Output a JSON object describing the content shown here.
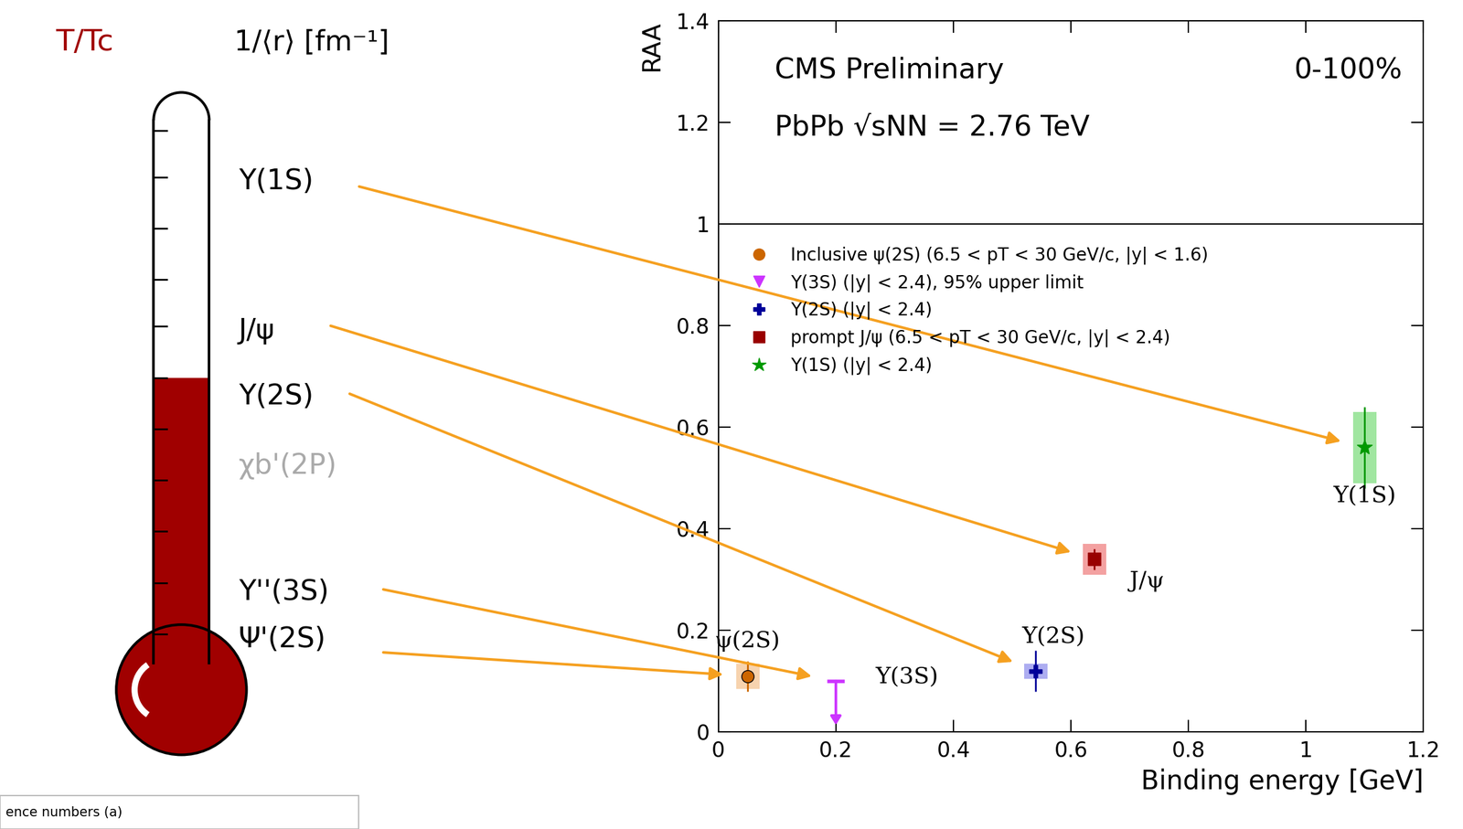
{
  "chart_data": {
    "type": "scatter",
    "x_label": "Binding energy [GeV]",
    "y_label": "RAA",
    "annotations": [
      "CMS Preliminary",
      "0-100%",
      "PbPb √sNN = 2.76 TeV"
    ],
    "xlim": [
      0,
      1.2
    ],
    "xticks": [
      0,
      0.2,
      0.4,
      0.6,
      0.8,
      1,
      1.2
    ],
    "ylim": [
      0,
      1.4
    ],
    "yticks": [
      0,
      0.2,
      0.4,
      0.6,
      0.8,
      1,
      1.2,
      1.4
    ],
    "reference_line": 1,
    "legend": "upper left",
    "series": [
      {
        "name": "Inclusive ψ(2S) (6.5 < pT < 30 GeV/c, |y| < 1.6)",
        "label": "ψ(2S)",
        "color": "#cc6600",
        "box_color": "#f5c89a",
        "marker": "circle",
        "x": [
          0.05
        ],
        "values": [
          0.11
        ],
        "error": [
          0.03
        ],
        "sys_error": [
          0.025
        ]
      },
      {
        "name": "Υ(3S) (|y| < 2.4), 95% upper limit",
        "label": "Υ(3S)",
        "type": "upper_limit",
        "color": "#cc33ff",
        "marker": "triangle_down",
        "x": [
          0.2
        ],
        "values": [
          0.1
        ]
      },
      {
        "name": "Υ(2S) (|y| < 2.4)",
        "label": "Υ(2S)",
        "color": "#000099",
        "box_color": "#9999ee",
        "marker": "plus",
        "x": [
          0.54
        ],
        "values": [
          0.12
        ],
        "error": [
          0.04
        ],
        "sys_error": [
          0.015
        ]
      },
      {
        "name": "prompt J/ψ (6.5 < pT < 30 GeV/c, |y| < 2.4)",
        "label": "J/ψ",
        "color": "#990000",
        "box_color": "#f08a8a",
        "marker": "square",
        "x": [
          0.64
        ],
        "values": [
          0.34
        ],
        "error": [
          0.02
        ],
        "sys_error": [
          0.03
        ]
      },
      {
        "name": "Υ(1S) (|y| < 2.4)",
        "label": "Υ(1S)",
        "color": "#009900",
        "box_color": "#88e088",
        "marker": "star",
        "x": [
          1.1
        ],
        "values": [
          0.56
        ],
        "error": [
          0.08
        ],
        "sys_error": [
          0.07
        ]
      }
    ]
  },
  "thermometer": {
    "axis_labels": [
      "T/Tc",
      "1/⟨r⟩ [fm⁻¹]"
    ],
    "states": [
      {
        "label": "Υ(1S)",
        "points_to": "Υ(1S)"
      },
      {
        "label": "J/ψ",
        "points_to": "J/ψ"
      },
      {
        "label": "Υ(2S)",
        "points_to": "Υ(2S)"
      },
      {
        "label": "χb'(2P)",
        "color": "#aaaaaa"
      },
      {
        "label": "Υ''(3S)",
        "points_to": "Υ(3S)"
      },
      {
        "label": "Ψ'(2S)",
        "points_to": "ψ(2S)"
      }
    ],
    "footnote": "ence numbers (a)"
  }
}
